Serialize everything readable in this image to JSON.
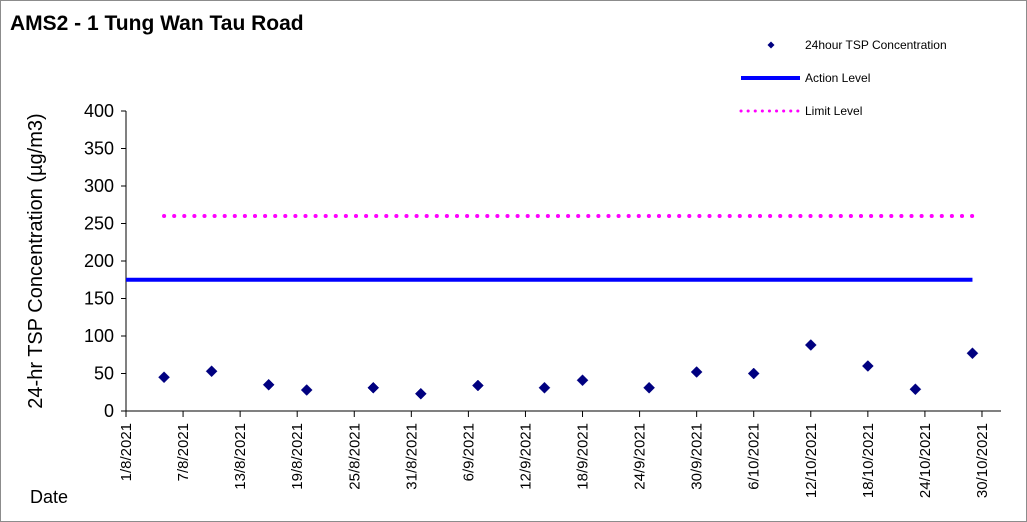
{
  "chart_data": {
    "type": "scatter",
    "title": "AMS2 - 1 Tung Wan Tau Road",
    "xlabel": "Date",
    "ylabel": "24-hr TSP Concentration (µg/m3)",
    "ylim": [
      0,
      400
    ],
    "yticks": [
      0,
      50,
      100,
      150,
      200,
      250,
      300,
      350,
      400
    ],
    "xlim": [
      "2021-08-01",
      "2021-11-01"
    ],
    "xticks": [
      "1/8/2021",
      "7/8/2021",
      "13/8/2021",
      "19/8/2021",
      "25/8/2021",
      "31/8/2021",
      "6/9/2021",
      "12/9/2021",
      "18/9/2021",
      "24/9/2021",
      "30/9/2021",
      "6/10/2021",
      "12/10/2021",
      "18/10/2021",
      "24/10/2021",
      "30/10/2021"
    ],
    "grid": false,
    "legend_position": "top-right",
    "series": [
      {
        "name": "24hour TSP Concentration",
        "kind": "marker",
        "marker": "diamond",
        "color": "#000080",
        "x": [
          "2021-08-05",
          "2021-08-10",
          "2021-08-16",
          "2021-08-20",
          "2021-08-27",
          "2021-09-01",
          "2021-09-07",
          "2021-09-14",
          "2021-09-18",
          "2021-09-25",
          "2021-09-30",
          "2021-10-06",
          "2021-10-12",
          "2021-10-18",
          "2021-10-23",
          "2021-10-29"
        ],
        "y": [
          45,
          53,
          35,
          28,
          31,
          23,
          34,
          31,
          41,
          31,
          52,
          50,
          88,
          60,
          29,
          77
        ]
      },
      {
        "name": "Action Level",
        "kind": "line",
        "style": "solid",
        "color": "#0000FF",
        "x": [
          "2021-08-01",
          "2021-10-29"
        ],
        "y": [
          175,
          175
        ]
      },
      {
        "name": "Limit Level",
        "kind": "line",
        "style": "dotted",
        "color": "#FF00FF",
        "x": [
          "2021-08-05",
          "2021-10-29"
        ],
        "y": [
          260,
          260
        ]
      }
    ]
  }
}
